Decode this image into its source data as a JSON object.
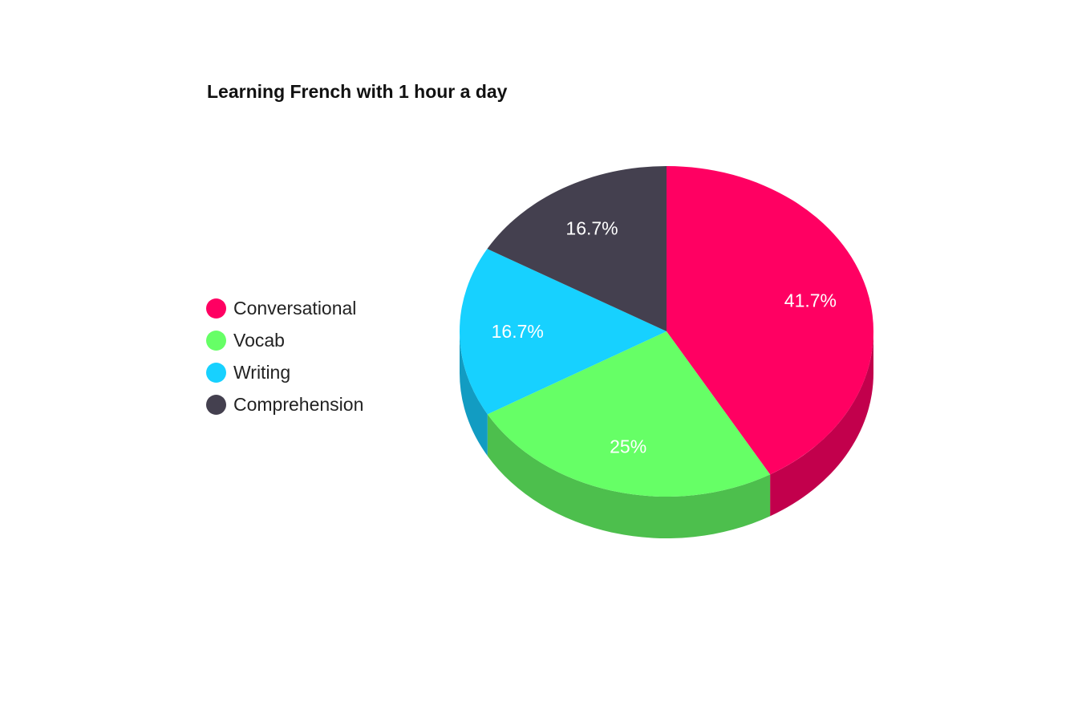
{
  "chart_data": {
    "type": "pie",
    "title": "Learning French with 1 hour a day",
    "categories": [
      "Conversational",
      "Vocab",
      "Writing",
      "Comprehension"
    ],
    "values": [
      41.7,
      25,
      16.7,
      16.7
    ],
    "labels": [
      "41.7%",
      "25%",
      "16.7%",
      "16.7%"
    ],
    "colors": [
      "#ff0062",
      "#66ff66",
      "#17d1ff",
      "#44404f"
    ],
    "side_colors": [
      "#c2004c",
      "#4dbf4d",
      "#129cc2",
      "#333040"
    ],
    "style": "3d",
    "legend": "left"
  }
}
